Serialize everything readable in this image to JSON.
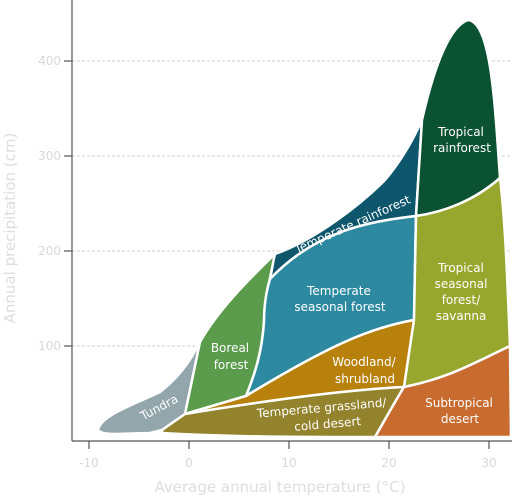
{
  "chart_data": {
    "type": "diagram",
    "xlabel": "Average annual temperature (°C)",
    "ylabel": "Annual precipitation (cm)",
    "xlim": [
      -10,
      32
    ],
    "ylim": [
      0,
      440
    ],
    "x_ticks": [
      "-10",
      "0",
      "10",
      "20",
      "30"
    ],
    "y_ticks": [
      "100",
      "200",
      "300",
      "400"
    ],
    "biomes": [
      {
        "id": "tundra",
        "label": [
          "Tundra"
        ],
        "color": "#93a6ab"
      },
      {
        "id": "boreal",
        "label": [
          "Boreal",
          "forest"
        ],
        "color": "#5a9b4c"
      },
      {
        "id": "temperate-rainforest",
        "label": [
          "Temperate rainforest"
        ],
        "color": "#0e566c"
      },
      {
        "id": "temperate-seasonal",
        "label": [
          "Temperate",
          "seasonal forest"
        ],
        "color": "#2c89a0"
      },
      {
        "id": "woodland",
        "label": [
          "Woodland/",
          "shrubland"
        ],
        "color": "#b7810b"
      },
      {
        "id": "grassland",
        "label": [
          "Temperate grassland/",
          "cold desert"
        ],
        "color": "#93832c"
      },
      {
        "id": "tropical-rainforest",
        "label": [
          "Tropical",
          "rainforest"
        ],
        "color": "#0a5231"
      },
      {
        "id": "tropical-seasonal",
        "label": [
          "Tropical",
          "seasonal",
          "forest/",
          "savanna"
        ],
        "color": "#97a62c"
      },
      {
        "id": "subtropical-desert",
        "label": [
          "Subtropical",
          "desert"
        ],
        "color": "#c76b2f"
      }
    ]
  }
}
